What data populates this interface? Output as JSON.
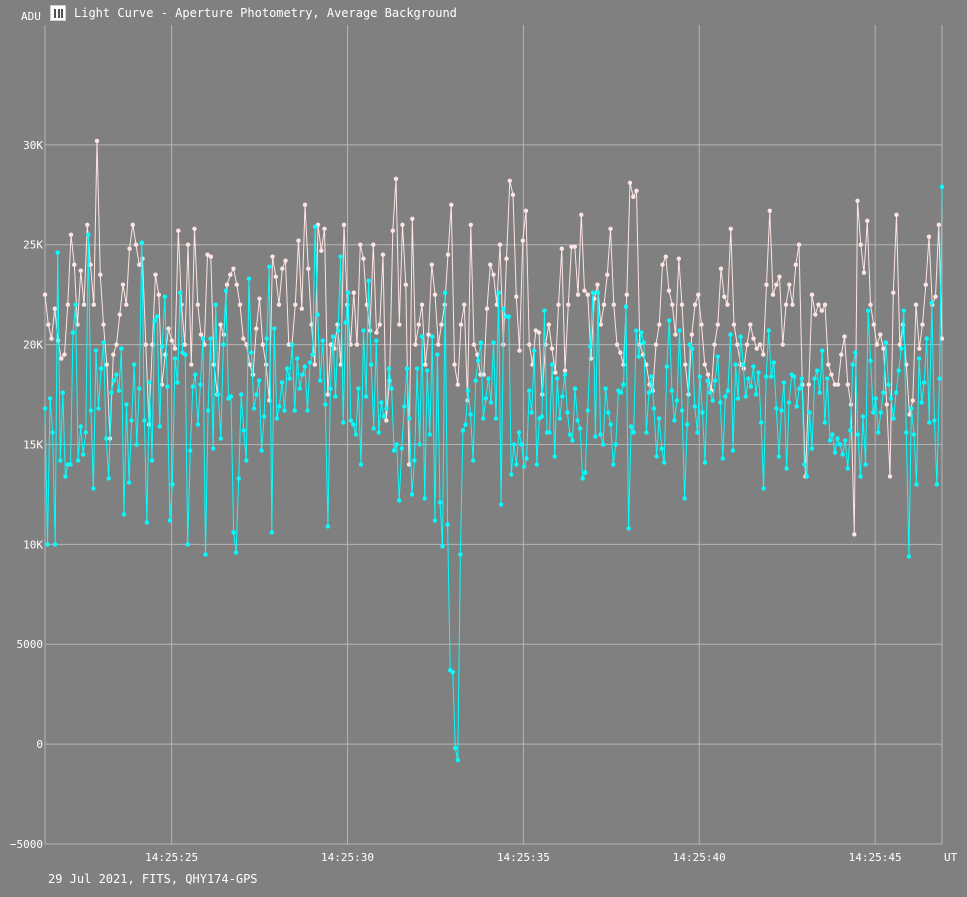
{
  "window": {
    "title": "Light Curve - Aperture Photometry, Average Background",
    "icon": "light-curve-app-icon"
  },
  "footer": "29 Jul 2021, FITS, QHY174-GPS",
  "colors": {
    "background": "#808080",
    "grid": "#b4b4b4",
    "target_series": "#00ffff",
    "comparison_series": "#ffe4e4"
  },
  "chart_data": {
    "type": "line",
    "title": "Light Curve - Aperture Photometry, Average Background",
    "ylabel": "ADU",
    "xlabel": "UT",
    "ylim": [
      -5000,
      36000
    ],
    "xlim": [
      "14:25:21.4",
      "14:25:46.9"
    ],
    "x_ticks": [
      "14:25:25",
      "14:25:30",
      "14:25:35",
      "14:25:40",
      "14:25:45"
    ],
    "y_ticks": [
      {
        "value": 30000,
        "label": "30K"
      },
      {
        "value": 25000,
        "label": "25K"
      },
      {
        "value": 20000,
        "label": "20K"
      },
      {
        "value": 15000,
        "label": "15K"
      },
      {
        "value": 10000,
        "label": "10K"
      },
      {
        "value": 5000,
        "label": "5000"
      },
      {
        "value": 0,
        "label": "0"
      },
      {
        "value": -5000,
        "label": "−5000"
      }
    ],
    "grid": true,
    "legend": "none",
    "sample_interval_s": 0.1,
    "series": [
      {
        "color": "#ffe4e4",
        "values": [
          22500,
          21000,
          20300,
          21800,
          20200,
          19300,
          19500,
          22000,
          25500,
          24000,
          21000,
          23700,
          22000,
          26000,
          24000,
          22000,
          30200,
          23500,
          21000,
          19000,
          15300,
          19500,
          20000,
          21500,
          23000,
          22000,
          24800,
          26000,
          25000,
          24000,
          24300,
          20000,
          16000,
          20000,
          23500,
          22500,
          18000,
          19500,
          20800,
          20200,
          19800,
          25700,
          22000,
          20000,
          25000,
          19000,
          25800,
          22000,
          20500,
          20000,
          24500,
          24400,
          19000,
          17500,
          21000,
          20500,
          23000,
          23500,
          23800,
          23000,
          22000,
          20300,
          20000,
          19000,
          18500,
          20800,
          22300,
          20000,
          19000,
          17200,
          24400,
          23400,
          22000,
          23800,
          24200,
          20000,
          20000,
          22000,
          25200,
          21800,
          27000,
          23800,
          21000,
          19000,
          26000,
          24700,
          25800,
          17500,
          20000,
          19800,
          21000,
          19000,
          26000,
          22000,
          20000,
          22600,
          20000,
          25000,
          24300,
          22000,
          20700,
          25000,
          20600,
          21000,
          24500,
          16200,
          18200,
          25700,
          28300,
          21000,
          26000,
          23000,
          14000,
          26300,
          20000,
          21000,
          22000,
          19000,
          20500,
          24000,
          22500,
          20000,
          21000,
          22000,
          24500,
          27000,
          19000,
          18000,
          21000,
          22000,
          17200,
          26000,
          20000,
          19500,
          18500,
          18500,
          21800,
          24000,
          23500,
          22000,
          25000,
          20000,
          24300,
          28200,
          27500,
          22400,
          19700,
          25200,
          26700,
          20000,
          19000,
          20700,
          20600,
          17500,
          20000,
          21000,
          19800,
          18600,
          22000,
          24800,
          18700,
          22000,
          24900,
          24900,
          22500,
          26500,
          22700,
          22500,
          19300,
          22300,
          23000,
          21000,
          22000,
          23500,
          25800,
          22000,
          20000,
          19600,
          19000,
          22500,
          28100,
          27400,
          27700,
          20000,
          19500,
          19000,
          18000,
          17700,
          20000,
          21000,
          24000,
          24400,
          22700,
          22000,
          20500,
          24300,
          22000,
          19000,
          17500,
          20500,
          22000,
          22500,
          21000,
          19000,
          18500,
          17700,
          20000,
          21000,
          23800,
          22400,
          22000,
          25800,
          21000,
          20000,
          19000,
          18800,
          20000,
          21000,
          20300,
          19800,
          20000,
          19500,
          23000,
          26700,
          22500,
          23000,
          23400,
          20000,
          22000,
          23000,
          22000,
          24000,
          25000,
          18000,
          13400,
          18000,
          22500,
          21500,
          22000,
          21700,
          22000,
          19000,
          18500,
          18000,
          18000,
          19500,
          20400,
          18000,
          17000,
          10500,
          27200,
          25000,
          23600,
          26200,
          22000,
          21000,
          20000,
          20500,
          19800,
          17000,
          13400,
          22600,
          26500,
          20000,
          21000,
          19000,
          16500,
          17200,
          22000,
          19800,
          21000,
          23000,
          25400,
          22000,
          22400,
          26000,
          20300
        ]
      },
      {
        "color": "#00ffff",
        "values": [
          16800,
          10000,
          17300,
          15600,
          10000,
          24600,
          14200,
          17600,
          13400,
          14000,
          14000,
          20600,
          22000,
          14200,
          15900,
          14500,
          15600,
          25500,
          16700,
          12800,
          19700,
          16800,
          18800,
          20100,
          15300,
          13300,
          17600,
          18200,
          18500,
          17700,
          19800,
          11500,
          17000,
          13100,
          16200,
          19000,
          15000,
          17800,
          25100,
          16200,
          11100,
          18100,
          14200,
          21200,
          21400,
          15900,
          19900,
          22400,
          17900,
          11200,
          13000,
          19300,
          18100,
          22600,
          19600,
          19500,
          10000,
          14700,
          17900,
          18500,
          16000,
          18000,
          20300,
          9500,
          16700,
          20300,
          14800,
          22000,
          17500,
          15300,
          20000,
          22700,
          17300,
          17400,
          10600,
          9600,
          13300,
          17500,
          15700,
          14200,
          23300,
          19600,
          16800,
          17500,
          18200,
          14700,
          16400,
          20300,
          23900,
          10600,
          20800,
          16300,
          16900,
          18100,
          16700,
          18800,
          18300,
          20000,
          16700,
          19300,
          17800,
          18500,
          18900,
          16700,
          19100,
          19500,
          25900,
          21500,
          18200,
          20200,
          17000,
          10900,
          17800,
          20400,
          17400,
          20700,
          24400,
          16100,
          21100,
          22600,
          16200,
          16000,
          15500,
          17800,
          14000,
          20700,
          17400,
          23200,
          19000,
          15800,
          20200,
          15600,
          17100,
          16400,
          16800,
          18800,
          17800,
          14700,
          15000,
          12200,
          14800,
          16900,
          18800,
          16300,
          12500,
          14200,
          18800,
          15000,
          20400,
          12300,
          18700,
          15500,
          20400,
          11200,
          19500,
          12100,
          9900,
          22600,
          11000,
          3700,
          3600,
          -200,
          -800,
          9500,
          15700,
          16000,
          17700,
          16500,
          14200,
          18200,
          19200,
          20100,
          16300,
          17300,
          18300,
          17100,
          20100,
          16300,
          22600,
          12000,
          21800,
          21400,
          21400,
          13500,
          15000,
          14000,
          15600,
          15000,
          13900,
          14300,
          17700,
          16600,
          19700,
          14000,
          16300,
          16400,
          21700,
          15600,
          15600,
          19000,
          14400,
          18300,
          16300,
          17400,
          18500,
          16600,
          15500,
          15200,
          17800,
          16200,
          15800,
          13300,
          13600,
          16700,
          19900,
          22600,
          15400,
          22600,
          15500,
          15000,
          17800,
          16600,
          16000,
          14000,
          15000,
          17700,
          17600,
          18000,
          21900,
          10800,
          15900,
          15600,
          20700,
          19400,
          20600,
          20100,
          15600,
          17600,
          18400,
          16800,
          14400,
          16300,
          14800,
          14100,
          18900,
          21200,
          17700,
          16200,
          17200,
          20700,
          16700,
          12300,
          16000,
          20000,
          19800,
          16900,
          15600,
          18400,
          16600,
          14100,
          18200,
          17600,
          17200,
          18200,
          19400,
          17100,
          14300,
          17400,
          17700,
          20500,
          14700,
          19000,
          17300,
          20400,
          19000,
          17400,
          18300,
          17900,
          18900,
          17500,
          18600,
          16100,
          12800,
          18400,
          20700,
          18400,
          19100,
          16800,
          14400,
          16700,
          18100,
          13800,
          17100,
          18500,
          18400,
          16900,
          17800,
          18300,
          14000,
          13400,
          16600,
          14800,
          18300,
          18700,
          17600,
          19700,
          16100,
          18300,
          15200,
          15500,
          14600,
          15300,
          15000,
          14500,
          15200,
          13800,
          15700,
          19000,
          19600,
          15500,
          13400,
          16400,
          14000,
          21700,
          19200,
          16600,
          17300,
          15600,
          16600,
          17600,
          20100,
          18000,
          17300,
          16300,
          17600,
          18700,
          19800,
          21700,
          15600,
          9400,
          16800,
          15500,
          13000,
          19300,
          17100,
          18100,
          20300,
          16100,
          22100,
          16200,
          13000,
          18300,
          27900
        ]
      }
    ]
  }
}
